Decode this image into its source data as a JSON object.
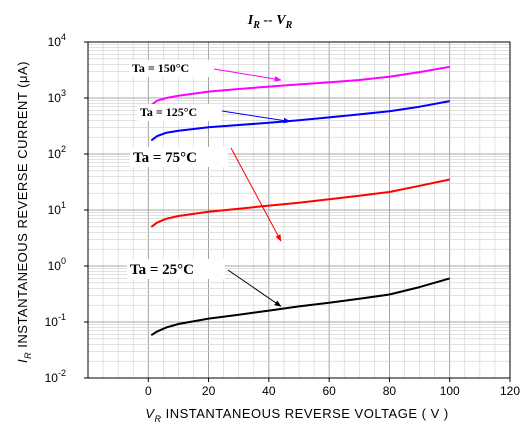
{
  "chart_data": {
    "type": "line",
    "title": "I_R -- V_R",
    "title_main_1": "I",
    "title_sub_1": "R",
    "title_sep": " -- V",
    "title_sub_2": "R",
    "xlabel_prefix": "V",
    "xlabel_sub": "R",
    "xlabel_text": " INSTANTANEOUS  REVERSE  VOLTAGE ( V )",
    "ylabel_prefix": "I",
    "ylabel_sub": "R",
    "ylabel_text": " INSTANTANEOUS  REVERSE  CURRENT  (μA)",
    "xlim": [
      -20,
      120
    ],
    "x_ticks": [
      0,
      20,
      40,
      60,
      80,
      100,
      120
    ],
    "y_scale": "log",
    "ylim": [
      0.01,
      10000
    ],
    "y_tick_exponents": [
      -2,
      -1,
      0,
      1,
      2,
      3,
      4
    ],
    "grid": true,
    "series": [
      {
        "label_text": "Ta = 150°C",
        "color": "#ff00ff",
        "x": [
          1,
          3,
          6,
          10,
          20,
          30,
          40,
          50,
          60,
          70,
          80,
          90,
          100
        ],
        "y": [
          750,
          900,
          1000,
          1100,
          1300,
          1450,
          1600,
          1750,
          1900,
          2100,
          2400,
          2900,
          3600
        ]
      },
      {
        "label_text": "Ta = 125°C",
        "color": "#0000ff",
        "x": [
          1,
          3,
          6,
          10,
          20,
          30,
          40,
          50,
          60,
          70,
          80,
          90,
          100
        ],
        "y": [
          175,
          210,
          240,
          260,
          300,
          330,
          360,
          400,
          450,
          510,
          580,
          700,
          880
        ]
      },
      {
        "label_text": "Ta = 75°C",
        "color": "#ff0000",
        "x": [
          1,
          3,
          6,
          10,
          20,
          30,
          40,
          50,
          60,
          70,
          80,
          90,
          100
        ],
        "y": [
          5,
          6,
          7,
          7.8,
          9.3,
          10.5,
          12,
          13.5,
          15.5,
          18,
          21,
          27,
          35
        ]
      },
      {
        "label_text": "Ta = 25°C",
        "color": "#000000",
        "x": [
          1,
          3,
          6,
          10,
          20,
          30,
          40,
          50,
          60,
          70,
          80,
          90,
          100
        ],
        "y": [
          0.058,
          0.068,
          0.08,
          0.092,
          0.115,
          0.135,
          0.16,
          0.19,
          0.22,
          0.26,
          0.31,
          0.42,
          0.6
        ]
      }
    ],
    "annotations": [
      {
        "text": "Ta = 150°C",
        "arrow_to": [
          44,
          2100
        ]
      },
      {
        "text": "Ta = 125°C",
        "arrow_to": [
          47,
          380
        ]
      },
      {
        "text": "Ta = 75°C",
        "arrow_to": [
          44,
          2.8
        ]
      },
      {
        "text": "Ta = 25°C",
        "arrow_to": [
          44,
          0.19
        ]
      }
    ]
  }
}
